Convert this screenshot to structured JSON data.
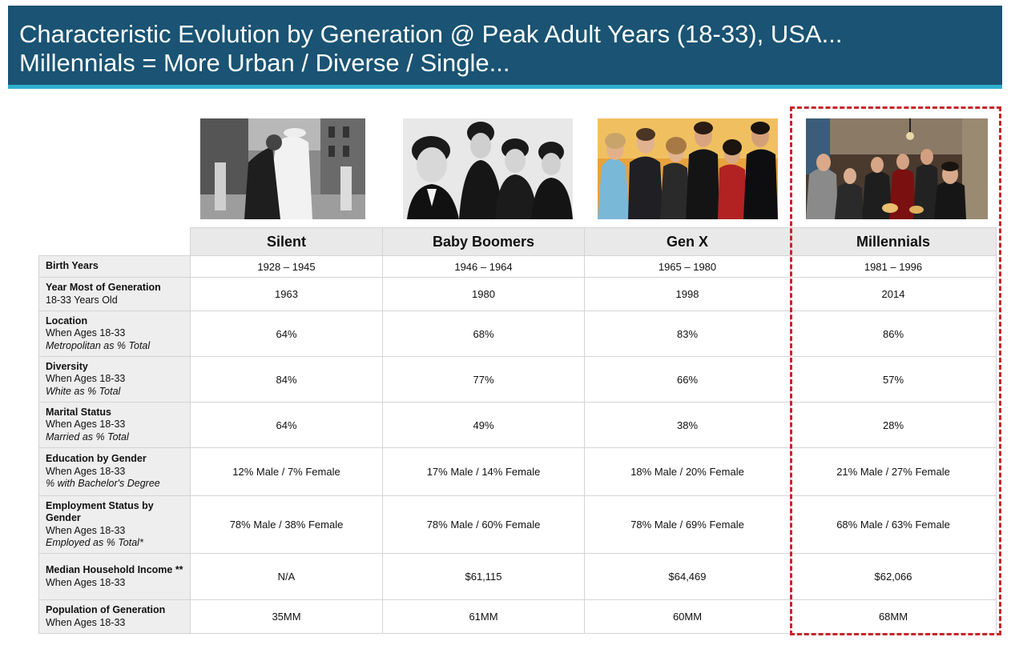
{
  "header": {
    "title_line1": "Characteristic Evolution by Generation @ Peak Adult Years (18-33), USA...",
    "title_line2": "Millennials = More Urban / Diverse / Single..."
  },
  "colors": {
    "header_bg": "#1a5373",
    "header_rule": "#2fb0cf",
    "highlight": "#c8232a"
  },
  "photos": [
    {
      "generation": "Silent",
      "style": "black-and-white"
    },
    {
      "generation": "Baby Boomers",
      "style": "black-and-white"
    },
    {
      "generation": "Gen X",
      "style": "color"
    },
    {
      "generation": "Millennials",
      "style": "color"
    }
  ],
  "table": {
    "columns": [
      "Silent",
      "Baby Boomers",
      "Gen X",
      "Millennials"
    ],
    "rows": [
      {
        "title": "Birth Years",
        "sub": "",
        "note": "",
        "values": [
          "1928 – 1945",
          "1946 – 1964",
          "1965 – 1980",
          "1981 – 1996"
        ]
      },
      {
        "title": "Year Most of Generation",
        "sub": "18-33 Years Old",
        "note": "",
        "values": [
          "1963",
          "1980",
          "1998",
          "2014"
        ]
      },
      {
        "title": "Location",
        "sub": "When Ages 18-33",
        "note": "Metropolitan as % Total",
        "values": [
          "64%",
          "68%",
          "83%",
          "86%"
        ]
      },
      {
        "title": "Diversity",
        "sub": "When Ages 18-33",
        "note": "White as % Total",
        "values": [
          "84%",
          "77%",
          "66%",
          "57%"
        ]
      },
      {
        "title": "Marital Status",
        "sub": "When Ages 18-33",
        "note": "Married as % Total",
        "values": [
          "64%",
          "49%",
          "38%",
          "28%"
        ]
      },
      {
        "title": "Education by Gender",
        "sub": "When Ages 18-33",
        "note": "% with Bachelor's Degree",
        "values": [
          "12% Male / 7% Female",
          "17% Male / 14% Female",
          "18% Male / 20% Female",
          "21% Male / 27% Female"
        ]
      },
      {
        "title": "Employment Status by Gender",
        "sub": "When Ages 18-33",
        "note": "Employed as % Total*",
        "values": [
          "78% Male / 38% Female",
          "78% Male / 60% Female",
          "78% Male / 69% Female",
          "68% Male / 63% Female"
        ]
      },
      {
        "title": "Median Household Income **",
        "sub": "When Ages 18-33",
        "note": "",
        "values": [
          "N/A",
          "$61,115",
          "$64,469",
          "$62,066"
        ]
      },
      {
        "title": "Population of Generation",
        "sub": "When Ages 18-33",
        "note": "",
        "values": [
          "35MM",
          "61MM",
          "60MM",
          "68MM"
        ]
      }
    ]
  }
}
